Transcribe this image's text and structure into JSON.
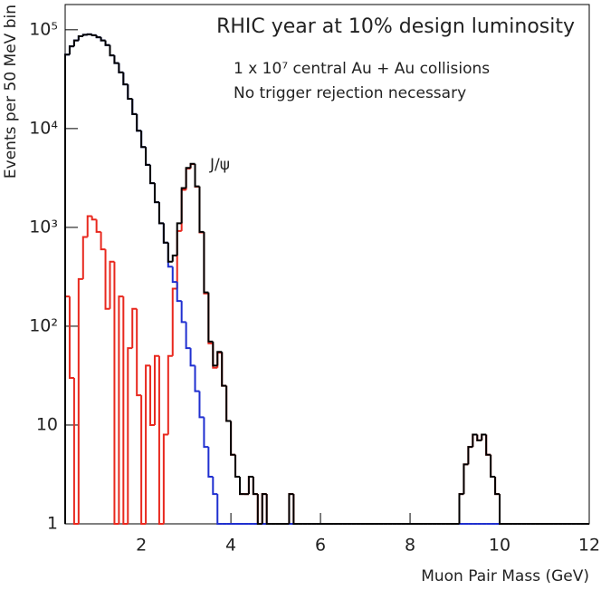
{
  "chart_data": {
    "type": "histogram",
    "title": "RHIC year at 10% design luminosity",
    "annotations": [
      "1 x 10⁷ central Au + Au collisions",
      "No trigger rejection necessary",
      "J/ψ"
    ],
    "xlabel": "Muon Pair Mass (GeV)",
    "ylabel": "Events per 50 MeV bin",
    "log_y": true,
    "xlim": [
      0.3,
      12
    ],
    "xticks": [
      2,
      4,
      6,
      8,
      10,
      12
    ],
    "ylim": [
      1,
      180000
    ],
    "yticks": [
      1,
      10,
      {
        "value": 100,
        "label": "10²"
      },
      {
        "value": 1000,
        "label": "10³"
      },
      {
        "value": 10000,
        "label": "10⁴"
      },
      {
        "value": 100000,
        "label": "10⁵"
      }
    ],
    "bins": [
      0.3,
      0.4,
      0.5,
      0.6,
      0.7,
      0.8,
      0.9,
      1.0,
      1.1,
      1.2,
      1.3,
      1.4,
      1.5,
      1.6,
      1.7,
      1.8,
      1.9,
      2.0,
      2.1,
      2.2,
      2.3,
      2.4,
      2.5,
      2.6,
      2.7,
      2.8,
      2.9,
      3.0,
      3.1,
      3.2,
      3.3,
      3.4,
      3.5,
      3.6,
      3.7,
      3.8,
      3.9,
      4.0,
      4.1,
      4.2,
      4.3,
      4.4,
      4.5,
      4.6,
      4.7,
      4.8,
      4.9,
      5.0,
      5.1,
      5.2,
      5.3,
      5.4,
      5.5,
      5.6,
      5.7,
      5.8,
      5.9,
      6.0,
      6.1,
      6.2,
      6.3,
      6.4,
      6.5,
      6.6,
      6.7,
      6.8,
      6.9,
      7.0,
      7.1,
      7.2,
      7.3,
      7.4,
      7.5,
      7.6,
      7.7,
      7.8,
      7.9,
      8.0,
      8.1,
      8.2,
      8.3,
      8.4,
      8.5,
      8.6,
      8.7,
      8.8,
      8.9,
      9.0,
      9.1,
      9.2,
      9.3,
      9.4,
      9.5,
      9.6,
      9.7,
      9.8,
      9.9,
      10.0,
      10.1,
      10.2,
      10.3,
      10.4,
      10.5,
      10.6,
      10.7,
      10.8,
      10.9,
      11.0,
      11.1,
      11.2,
      11.3,
      11.4,
      11.5,
      11.6,
      11.7,
      11.8,
      11.9,
      12.0
    ],
    "series": [
      {
        "color": "#e8281e",
        "values": [
          200,
          30,
          0,
          300,
          800,
          1300,
          1200,
          900,
          600,
          150,
          450,
          0,
          200,
          0,
          60,
          150,
          20,
          0,
          40,
          10,
          50,
          0,
          8,
          50,
          240,
          920,
          2400,
          3940,
          4360,
          2580,
          888,
          214,
          67,
          38,
          54,
          25,
          11,
          5,
          3,
          2,
          2,
          3,
          2,
          1,
          2,
          1,
          1,
          0,
          1,
          0,
          2,
          1,
          0,
          1,
          0,
          1,
          0,
          1,
          1,
          0,
          0,
          1,
          0,
          0,
          0,
          0,
          1,
          0,
          0,
          0,
          0,
          0,
          0,
          0,
          0,
          0,
          1,
          0,
          1,
          0,
          0,
          0,
          0,
          0,
          0,
          0,
          0,
          1,
          2,
          4,
          6,
          8,
          7,
          8,
          5,
          3,
          2,
          1,
          0,
          1,
          1,
          0,
          0,
          0,
          0,
          0,
          0,
          0,
          0,
          1,
          0,
          0,
          0,
          0,
          0,
          0,
          0
        ]
      },
      {
        "color": "#1f2fd0",
        "values": [
          56000,
          68000,
          78000,
          86000,
          89000,
          90000,
          88000,
          84000,
          78000,
          70000,
          55000,
          46000,
          37000,
          28000,
          20000,
          14000,
          9500,
          6500,
          4300,
          2800,
          1800,
          1100,
          700,
          400,
          280,
          180,
          110,
          60,
          40,
          22,
          12,
          6,
          3,
          2,
          1,
          0,
          0,
          0,
          0,
          0,
          0,
          0,
          0,
          0,
          0,
          0,
          0,
          0,
          0,
          0,
          0,
          0,
          0,
          0,
          0,
          0,
          0,
          0,
          0,
          0,
          0,
          0,
          0,
          0,
          0,
          0,
          0,
          0,
          0,
          0,
          0,
          0,
          0,
          0,
          0,
          0,
          0,
          0,
          0,
          0,
          0,
          0,
          0,
          0,
          0,
          0,
          0,
          0,
          0,
          0,
          0,
          0,
          0,
          0,
          0,
          0,
          0,
          0,
          0,
          0,
          0,
          0,
          0,
          0,
          0,
          0,
          0,
          0,
          0,
          0,
          0,
          0,
          0,
          0,
          0,
          0,
          0
        ]
      },
      {
        "color": "#000000",
        "values": [
          56000,
          68000,
          78000,
          86000,
          89000,
          90000,
          88000,
          84000,
          78000,
          70000,
          55000,
          46000,
          37000,
          28000,
          20000,
          14000,
          9500,
          6500,
          4300,
          2800,
          1800,
          1100,
          700,
          450,
          520,
          1100,
          2500,
          4000,
          4400,
          2600,
          900,
          220,
          70,
          40,
          55,
          25,
          11,
          5,
          3,
          2,
          2,
          3,
          2,
          1,
          2,
          1,
          1,
          0,
          1,
          0,
          2,
          1,
          0,
          1,
          0,
          1,
          0,
          1,
          1,
          0,
          0,
          1,
          0,
          0,
          0,
          0,
          1,
          0,
          0,
          0,
          0,
          0,
          0,
          0,
          0,
          0,
          1,
          0,
          1,
          0,
          0,
          0,
          0,
          0,
          0,
          0,
          0,
          1,
          2,
          4,
          6,
          8,
          7,
          8,
          5,
          3,
          2,
          1,
          0,
          1,
          1,
          0,
          0,
          0,
          0,
          0,
          0,
          0,
          0,
          1,
          0,
          0,
          0,
          0,
          0,
          0,
          0
        ]
      }
    ]
  }
}
